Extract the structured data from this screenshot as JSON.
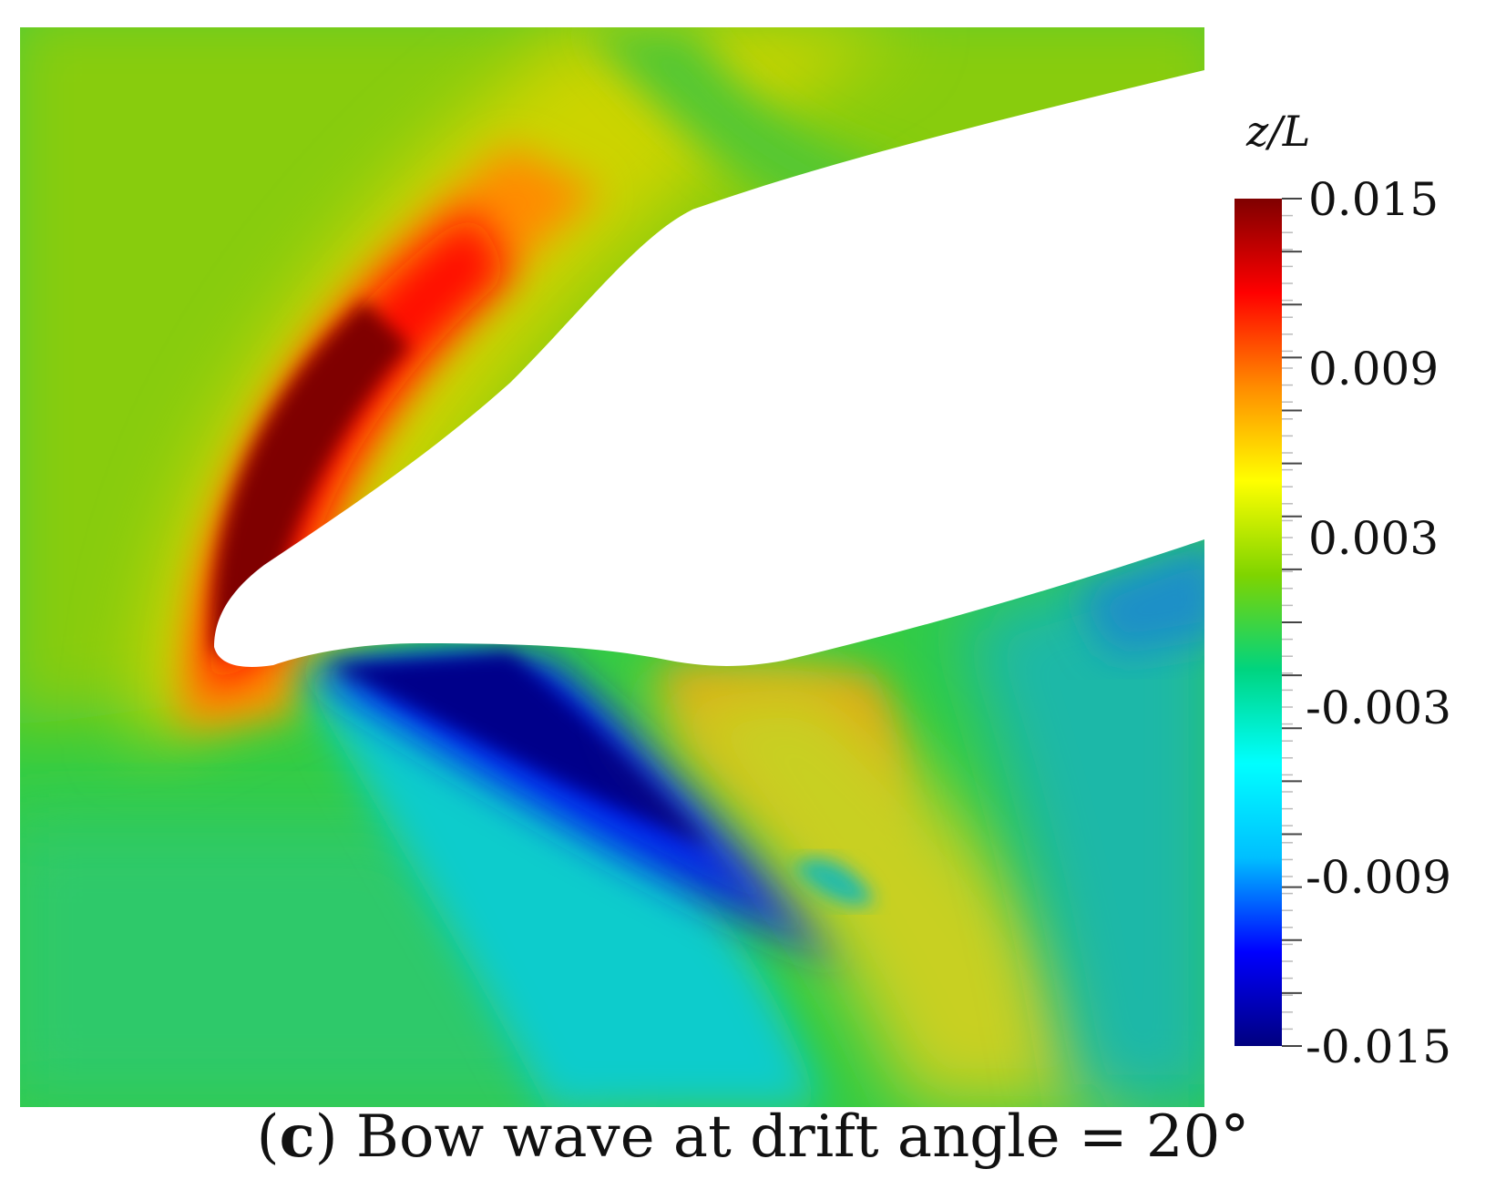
{
  "chart_data": {
    "type": "heatmap",
    "colorbar": {
      "title": "z/L",
      "ticks": [
        "0.015",
        "0.009",
        "0.003",
        "-0.003",
        "-0.009",
        "-0.015"
      ],
      "range": [
        -0.015,
        0.015
      ],
      "colors": [
        "#00007f",
        "#0000ff",
        "#00bfff",
        "#00ffff",
        "#00d47f",
        "#7fd400",
        "#ffff00",
        "#ff8c00",
        "#ff0000",
        "#7f0000"
      ]
    },
    "caption": {
      "open": "(",
      "letter": "c",
      "text": ") Bow wave at drift angle = 20°"
    }
  }
}
